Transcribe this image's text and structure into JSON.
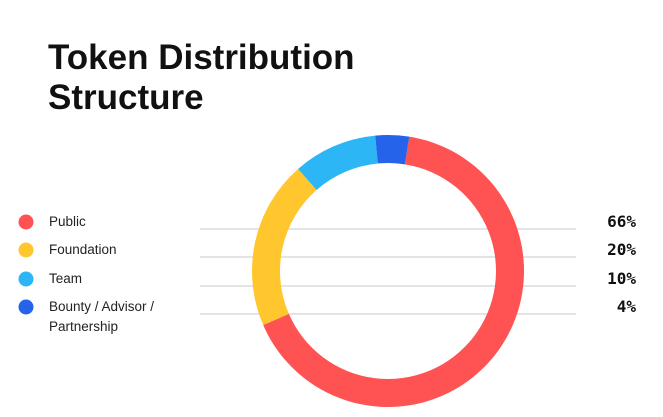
{
  "chart_data": {
    "type": "pie",
    "title": "Token Distribution Structure",
    "categories": [
      "Public",
      "Foundation",
      "Team",
      "Bounty / Advisor / Partnership"
    ],
    "values": [
      66,
      20,
      10,
      4
    ],
    "value_labels": [
      "66%",
      "20%",
      "10%",
      "4%"
    ],
    "colors": [
      "#ff5252",
      "#ffc62e",
      "#2cb6f6",
      "#2563eb"
    ]
  }
}
